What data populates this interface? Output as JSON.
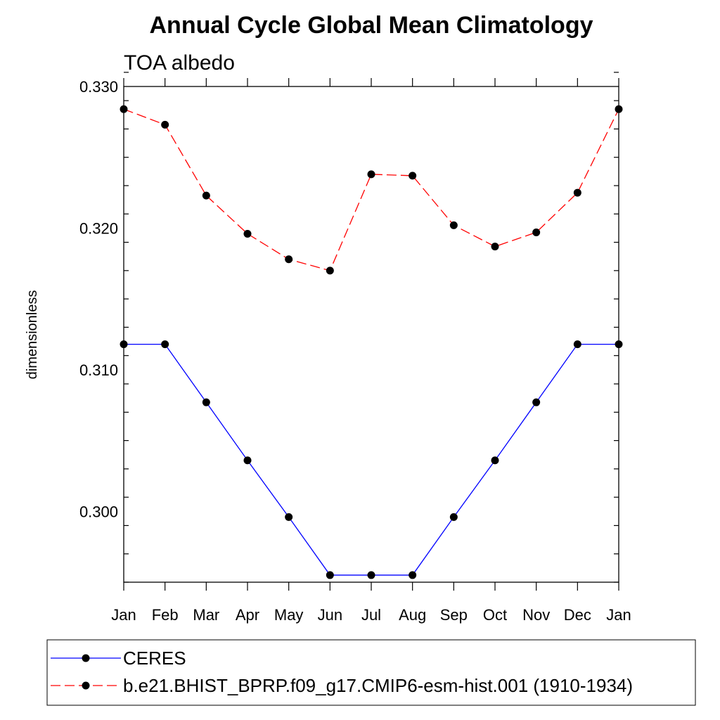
{
  "chart_data": {
    "type": "line",
    "title": "Annual Cycle Global Mean Climatology",
    "subtitle": "TOA albedo",
    "xlabel": "",
    "ylabel": "dimensionless",
    "categories": [
      "Jan",
      "Feb",
      "Mar",
      "Apr",
      "May",
      "Jun",
      "Jul",
      "Aug",
      "Sep",
      "Oct",
      "Nov",
      "Dec",
      "Jan"
    ],
    "ylim": [
      0.295,
      0.33
    ],
    "yticks": [
      "0.300",
      "0.310",
      "0.320",
      "0.330"
    ],
    "ytick_values": [
      0.3,
      0.31,
      0.32,
      0.33
    ],
    "y_minor_step": 0.002,
    "grid": false,
    "legend_position": "bottom",
    "series": [
      {
        "name": "CERES",
        "color": "#0000ff",
        "dash": "solid",
        "marker": "filled-circle",
        "values": [
          0.3118,
          0.3118,
          0.3077,
          0.3036,
          0.2996,
          0.2955,
          0.2955,
          0.2955,
          0.2996,
          0.3036,
          0.3077,
          0.3118,
          0.3118
        ]
      },
      {
        "name": "b.e21.BHIST_BPRP.f09_g17.CMIP6-esm-hist.001 (1910-1934)",
        "color": "#ff0000",
        "dash": "dashed",
        "marker": "filled-circle",
        "values": [
          0.3284,
          0.3273,
          0.3223,
          0.3196,
          0.3178,
          0.317,
          0.3238,
          0.3237,
          0.3202,
          0.3187,
          0.3197,
          0.3225,
          0.3284
        ]
      }
    ]
  }
}
